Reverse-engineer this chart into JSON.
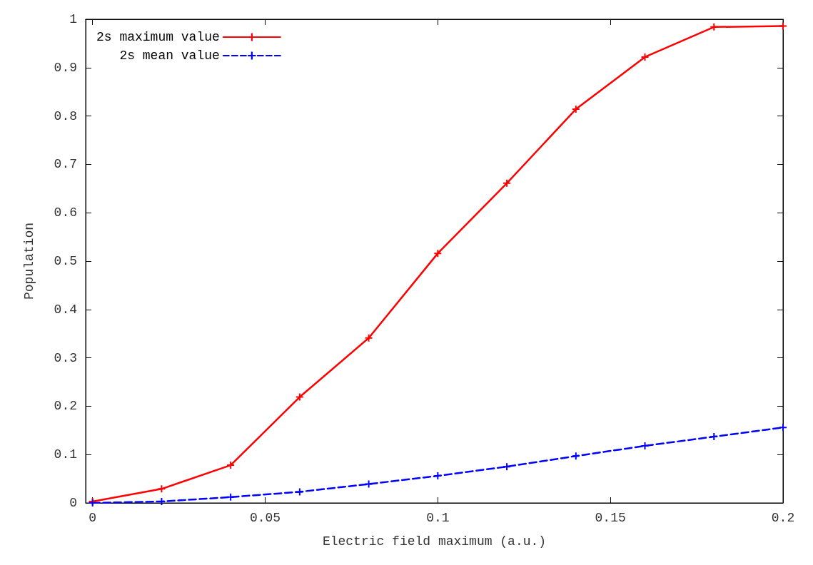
{
  "chart_data": {
    "type": "line",
    "xlabel": "Electric field maximum (a.u.)",
    "ylabel": "Population",
    "xlim": [
      -0.002,
      0.2
    ],
    "xticks": [
      0,
      0.05,
      0.1,
      0.15,
      0.2
    ],
    "ylim": [
      0,
      1
    ],
    "yticks": [
      0,
      0.1,
      0.2,
      0.3,
      0.4,
      0.5,
      0.6,
      0.7,
      0.8,
      0.9,
      1
    ],
    "x": [
      0,
      0.02,
      0.04,
      0.06,
      0.08,
      0.1,
      0.12,
      0.14,
      0.16,
      0.18,
      0.2
    ],
    "legend": "top left",
    "grid": false,
    "series": [
      {
        "name": "2s maximum value",
        "color": "#ff0000",
        "marker": "cross",
        "line_style": "solid",
        "values": [
          0.003,
          0.029,
          0.078,
          0.219,
          0.341,
          0.516,
          0.661,
          0.814,
          0.922,
          0.984,
          0.986
        ]
      },
      {
        "name": "2s mean value",
        "color": "#0000ff",
        "marker": "cross",
        "line_style": "dashed",
        "values": [
          0,
          0.003,
          0.012,
          0.023,
          0.039,
          0.056,
          0.075,
          0.097,
          0.118,
          0.137,
          0.156
        ]
      }
    ]
  }
}
